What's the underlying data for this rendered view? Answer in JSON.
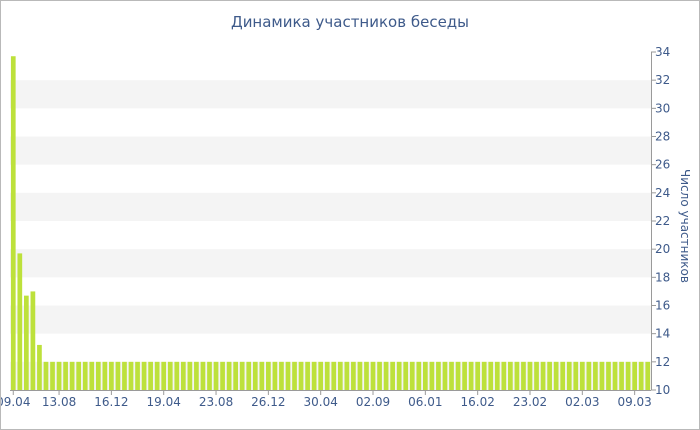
{
  "chart_data": {
    "type": "bar",
    "title": "Динамика участников беседы",
    "ylabel": "Число участников",
    "xlabel": "",
    "ylim": [
      10,
      34
    ],
    "y_ticks": [
      10,
      12,
      14,
      16,
      18,
      20,
      22,
      24,
      26,
      28,
      30,
      32,
      34
    ],
    "y_axis_position": "right",
    "x_tick_labels": [
      "09.04",
      "13.08",
      "16.12",
      "19.04",
      "23.08",
      "26.12",
      "30.04",
      "02.09",
      "06.01",
      "16.02",
      "23.02",
      "02.03",
      "09.03"
    ],
    "x_tick_bar_index": [
      0,
      7,
      15,
      23,
      31,
      39,
      47,
      55,
      63,
      71,
      79,
      87,
      95
    ],
    "bar_color": "#bde13b",
    "band_color": "#f4f4f4",
    "values": [
      33.7,
      19.7,
      16.7,
      17.0,
      13.2,
      12,
      12,
      12,
      12,
      12,
      12,
      12,
      12,
      12,
      12,
      12,
      12,
      12,
      12,
      12,
      12,
      12,
      12,
      12,
      12,
      12,
      12,
      12,
      12,
      12,
      12,
      12,
      12,
      12,
      12,
      12,
      12,
      12,
      12,
      12,
      12,
      12,
      12,
      12,
      12,
      12,
      12,
      12,
      12,
      12,
      12,
      12,
      12,
      12,
      12,
      12,
      12,
      12,
      12,
      12,
      12,
      12,
      12,
      12,
      12,
      12,
      12,
      12,
      12,
      12,
      12,
      12,
      12,
      12,
      12,
      12,
      12,
      12,
      12,
      12,
      12,
      12,
      12,
      12,
      12,
      12,
      12,
      12,
      12,
      12,
      12,
      12,
      12,
      12,
      12,
      12,
      12,
      12
    ]
  }
}
